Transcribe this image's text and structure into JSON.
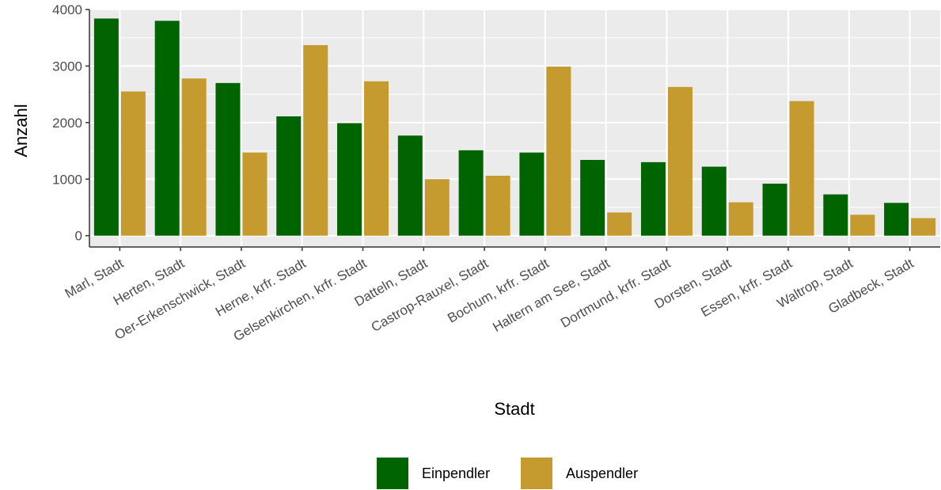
{
  "chart_data": {
    "type": "bar",
    "xlabel": "Stadt",
    "ylabel": "Anzahl",
    "ylim": [
      -200,
      4000
    ],
    "yticks": [
      0,
      1000,
      2000,
      3000,
      4000
    ],
    "grid": true,
    "legend_position": "bottom",
    "categories": [
      "Marl, Stadt",
      "Herten, Stadt",
      "Oer-Erkenschwick, Stadt",
      "Herne, krfr. Stadt",
      "Gelsenkirchen, krfr. Stadt",
      "Datteln, Stadt",
      "Castrop-Rauxel, Stadt",
      "Bochum, krfr. Stadt",
      "Haltern am See, Stadt",
      "Dortmund, krfr. Stadt",
      "Dorsten, Stadt",
      "Essen, krfr. Stadt",
      "Waltrop, Stadt",
      "Gladbeck, Stadt"
    ],
    "series": [
      {
        "name": "Einpendler",
        "color": "#006400",
        "values": [
          3840,
          3800,
          2700,
          2110,
          1990,
          1770,
          1510,
          1470,
          1340,
          1300,
          1220,
          920,
          730,
          580
        ]
      },
      {
        "name": "Auspendler",
        "color": "#C59A2F",
        "values": [
          2550,
          2780,
          1470,
          3370,
          2730,
          1000,
          1060,
          2990,
          410,
          2630,
          590,
          2380,
          370,
          310
        ]
      }
    ]
  }
}
